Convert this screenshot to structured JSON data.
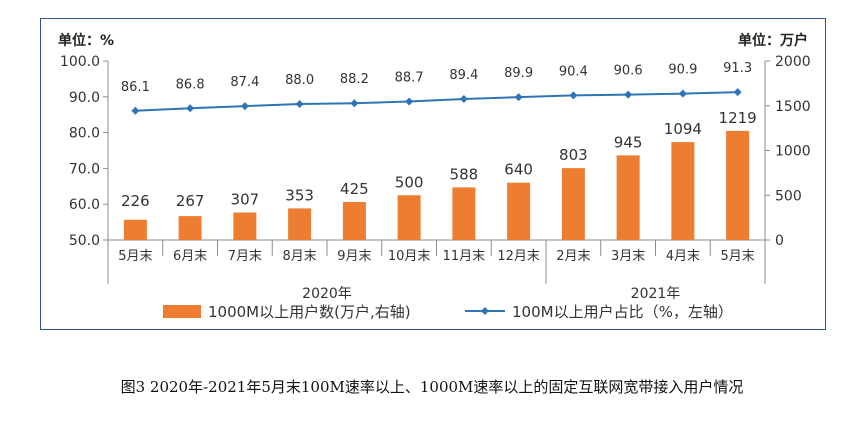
{
  "caption": "图3 2020年-2021年5月末100M速率以上、1000M速率以上的固定互联网宽带接入用户情况",
  "chart_data": {
    "type": "bar",
    "left_unit_label": "单位：%",
    "right_unit_label": "单位：万户",
    "categories": [
      "5月末",
      "6月末",
      "7月末",
      "8月末",
      "9月末",
      "10月末",
      "11月末",
      "12月末",
      "2月末",
      "3月末",
      "4月末",
      "5月末"
    ],
    "year_labels": [
      "2020年",
      "2021年"
    ],
    "left_axis": {
      "ticks": [
        "50.0",
        "60.0",
        "70.0",
        "80.0",
        "90.0",
        "100.0"
      ],
      "ylim": [
        50,
        100
      ]
    },
    "right_axis": {
      "ticks": [
        "0",
        "500",
        "1000",
        "1500",
        "2000"
      ],
      "ylim": [
        0,
        2000
      ]
    },
    "series": [
      {
        "name": "1000M以上用户数(万户,右轴)",
        "type": "bar",
        "axis": "right",
        "color": "#ed7d31",
        "values": [
          226,
          267,
          307,
          353,
          425,
          500,
          588,
          640,
          803,
          945,
          1094,
          1219
        ]
      },
      {
        "name": "100M以上用户占比（%，左轴）",
        "type": "line",
        "axis": "left",
        "color": "#2e75b6",
        "values": [
          86.1,
          86.8,
          87.4,
          88.0,
          88.2,
          88.7,
          89.4,
          89.9,
          90.4,
          90.6,
          90.9,
          91.3
        ]
      }
    ],
    "grid": false,
    "legend_position": "bottom"
  }
}
